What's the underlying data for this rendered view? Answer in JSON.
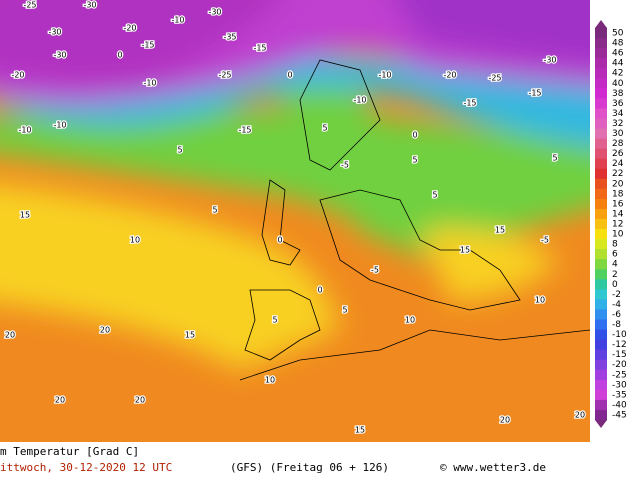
{
  "map": {
    "labels": [
      -25,
      -30,
      -10,
      -30,
      -30,
      -20,
      -35,
      -15,
      -15,
      -30,
      -20,
      -10,
      -25,
      0,
      0,
      -10,
      -20,
      -25,
      -30,
      -15,
      -15,
      -10,
      -10,
      -10,
      -15,
      5,
      5,
      0,
      5,
      15,
      10,
      5,
      -5,
      5,
      5,
      0,
      -5,
      0,
      15,
      15,
      -5,
      5,
      10,
      10,
      20,
      20,
      20,
      10,
      15,
      20,
      20,
      20,
      15,
      5
    ]
  },
  "colorbar": {
    "labels": [
      50,
      48,
      46,
      44,
      42,
      40,
      38,
      36,
      34,
      32,
      30,
      28,
      26,
      24,
      22,
      20,
      18,
      16,
      14,
      12,
      10,
      8,
      6,
      4,
      2,
      0,
      -2,
      -4,
      -6,
      -8,
      -10,
      -12,
      -15,
      -20,
      -25,
      -30,
      -35,
      -40,
      -45
    ],
    "colors": [
      "#7a2a7a",
      "#8a2a8a",
      "#9a2a9a",
      "#aa2aaa",
      "#b82ab8",
      "#c42ac4",
      "#d02ad0",
      "#d83ad0",
      "#e050c8",
      "#e060c0",
      "#e070b0",
      "#e06090",
      "#e05070",
      "#e04050",
      "#e03030",
      "#e85020",
      "#f06818",
      "#f58010",
      "#f8a010",
      "#f8c010",
      "#f8e010",
      "#d8e820",
      "#b0e030",
      "#80d840",
      "#50d060",
      "#30c8a0",
      "#30c8d0",
      "#30b0e8",
      "#3090f0",
      "#3070f0",
      "#3050e8",
      "#4040e0",
      "#6040e0",
      "#8040e0",
      "#a040e0",
      "#c040e0",
      "#d040d8",
      "#a030b0",
      "#802890"
    ]
  },
  "footer": {
    "variable": "m Temperatur [Grad C]",
    "date": "ittwoch, 30-12-2020  12 UTC",
    "run": "(GFS)  (Freitag 06 + 126)",
    "credit": "© www.wetter3.de"
  }
}
